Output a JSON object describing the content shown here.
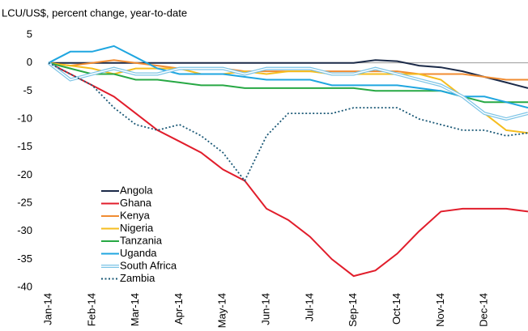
{
  "chart_data": {
    "type": "line",
    "title": "LCU/US$, percent change, year-to-date",
    "categories": [
      "Jan-14",
      null,
      "Feb-14",
      null,
      "Mar-14",
      null,
      "Apr-14",
      null,
      "May-14",
      null,
      "Jun-14",
      null,
      "Jul-14",
      null,
      "Sep-14",
      null,
      "Oct-14",
      null,
      "Nov-14",
      null,
      "Dec-14",
      null,
      null
    ],
    "ylim": [
      -40,
      5
    ],
    "yticks": [
      5,
      0,
      -5,
      -10,
      -15,
      -20,
      -25,
      -30,
      -35,
      -40
    ],
    "legend": "lower-left",
    "series": [
      {
        "name": "Angola",
        "color": "#1b2a48",
        "style": "solid",
        "values": [
          0,
          0,
          0,
          0,
          0,
          0,
          0,
          0,
          0,
          0,
          0,
          0,
          0,
          0,
          0,
          0.5,
          0.3,
          -0.5,
          -0.8,
          -1.5,
          -2.5,
          -3.5,
          -4.5
        ]
      },
      {
        "name": "Ghana",
        "color": "#e11d2b",
        "style": "solid",
        "values": [
          0,
          -2,
          -4,
          -6,
          -9,
          -12,
          -14,
          -16,
          -19,
          -21,
          -26,
          -28,
          -31,
          -35,
          -38,
          -37,
          -34,
          -30,
          -26.5,
          -26,
          -26,
          -26,
          -26.5
        ]
      },
      {
        "name": "Kenya",
        "color": "#f08c32",
        "style": "solid",
        "values": [
          0,
          -0.5,
          0,
          0.5,
          0,
          -0.5,
          -1,
          -1,
          -1,
          -1.5,
          -1.5,
          -1.5,
          -1.5,
          -1.5,
          -1.5,
          -1.5,
          -1.5,
          -2,
          -2,
          -2,
          -2.5,
          -3,
          -3
        ]
      },
      {
        "name": "Nigeria",
        "color": "#f5bd1f",
        "style": "solid",
        "values": [
          0,
          -0.5,
          -1,
          -2,
          -1,
          -1,
          -1,
          -2,
          -2,
          -1.5,
          -2,
          -1.5,
          -1.5,
          -2,
          -2,
          -2,
          -2,
          -2,
          -3,
          -6,
          -9,
          -12,
          -12.5
        ]
      },
      {
        "name": "Tanzania",
        "color": "#27a844",
        "style": "solid",
        "values": [
          0,
          -1,
          -2,
          -2,
          -3,
          -3,
          -3.5,
          -4,
          -4,
          -4.5,
          -4.5,
          -4.5,
          -4.5,
          -4.5,
          -4.5,
          -5,
          -5,
          -5,
          -5,
          -6,
          -7,
          -7,
          -7
        ]
      },
      {
        "name": "Uganda",
        "color": "#1fa6e0",
        "style": "solid",
        "values": [
          0,
          2,
          2,
          3,
          1,
          -1,
          -2,
          -2,
          -2,
          -2.5,
          -3,
          -3,
          -3,
          -4,
          -4,
          -4,
          -4,
          -4.5,
          -5,
          -6,
          -6,
          -7,
          -8
        ]
      },
      {
        "name": "South Africa",
        "color": "#7cc4e6",
        "style": "double",
        "values": [
          0,
          -3,
          -2,
          -1,
          -2,
          -2,
          -1,
          -1,
          -1,
          -2,
          -1,
          -1,
          -1,
          -2,
          -2,
          -1,
          -2,
          -3,
          -4,
          -6,
          -9,
          -10,
          -9
        ]
      },
      {
        "name": "Zambia",
        "color": "#1a5876",
        "style": "dotted",
        "values": [
          0,
          -2,
          -4,
          -8,
          -11,
          -12,
          -11,
          -13,
          -16,
          -21,
          -13,
          -9,
          -9,
          -9,
          -8,
          -8,
          -8,
          -10,
          -11,
          -12,
          -12,
          -13,
          -12.5
        ]
      }
    ]
  }
}
